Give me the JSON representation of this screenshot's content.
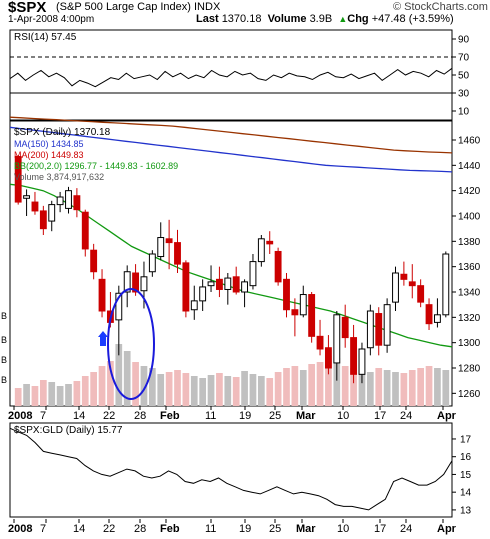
{
  "header": {
    "symbol": "$SPX",
    "description": "(S&P 500 Large Cap Index) INDX",
    "brand": "© StockCharts.com",
    "datetime": "1-Apr-2008 4:00pm",
    "last_label": "Last",
    "last_value": "1370.18",
    "volume_label": "Volume",
    "volume_value": "3.9B",
    "chg_label": "Chg",
    "chg_value": "+47.48 (+3.59%)",
    "chg_icon": "up-triangle-icon"
  },
  "colors": {
    "up": "#000000",
    "down": "#cc0000",
    "ma150": "#2233cc",
    "ma200": "#993300",
    "bb": "#119911",
    "volume_down": "#f0bcbc",
    "volume_up": "#c0c0c0",
    "annotation": "#1a1adb"
  },
  "chart_data": [
    {
      "type": "line",
      "panel": "rsi",
      "legend": "RSI(14) 57.45",
      "series": [
        {
          "name": "RSI(14)",
          "values": [
            46,
            52,
            44,
            50,
            55,
            48,
            52,
            47,
            38,
            44,
            41,
            37,
            42,
            47,
            45,
            52,
            46,
            48,
            50,
            45,
            54,
            48,
            52,
            46,
            50,
            47,
            55,
            50,
            48,
            54,
            50,
            52,
            46,
            44,
            50,
            47,
            52,
            49,
            48,
            45,
            50,
            53,
            48,
            47,
            51,
            46,
            49,
            52,
            44,
            50,
            56,
            50,
            54,
            52,
            48,
            55,
            51,
            57.45
          ]
        }
      ],
      "y_ticks": [
        "90",
        "70",
        "50",
        "30",
        "10"
      ],
      "ylim": [
        0,
        100
      ],
      "reference_lines": [
        70,
        30
      ]
    },
    {
      "type": "candlestick",
      "panel": "price",
      "legend": [
        "$SPX (Daily) 1370.18",
        "MA(150) 1434.85",
        "MA(200) 1449.83",
        "BB(200,2.0) 1296.77 - 1449.83 - 1602.89",
        "Volume 3,874,917,632"
      ],
      "y_ticks": [
        "1460",
        "1440",
        "1420",
        "1400",
        "1380",
        "1360",
        "1340",
        "1320",
        "1300",
        "1280",
        "1260"
      ],
      "ylim": [
        1250,
        1475
      ],
      "x_labels": [
        "2008",
        "7",
        "14",
        "22",
        "28",
        "Feb",
        "11",
        "19",
        "25",
        "Mar",
        "10",
        "17",
        "24",
        "Apr"
      ],
      "candles": [
        [
          1447,
          1448,
          1409,
          1411
        ],
        [
          1414,
          1421,
          1400,
          1416
        ],
        [
          1411,
          1419,
          1401,
          1404
        ],
        [
          1404,
          1408,
          1385,
          1390
        ],
        [
          1396,
          1412,
          1388,
          1409
        ],
        [
          1409,
          1419,
          1403,
          1415
        ],
        [
          1406,
          1423,
          1402,
          1420
        ],
        [
          1416,
          1422,
          1399,
          1405
        ],
        [
          1403,
          1405,
          1368,
          1374
        ],
        [
          1373,
          1378,
          1350,
          1356
        ],
        [
          1350,
          1358,
          1320,
          1325
        ],
        [
          1325,
          1340,
          1312,
          1316
        ],
        [
          1318,
          1345,
          1290,
          1339
        ],
        [
          1340,
          1361,
          1328,
          1356
        ],
        [
          1355,
          1362,
          1337,
          1340
        ],
        [
          1341,
          1364,
          1327,
          1352
        ],
        [
          1356,
          1373,
          1352,
          1370
        ],
        [
          1368,
          1395,
          1365,
          1383
        ],
        [
          1382,
          1397,
          1358,
          1379
        ],
        [
          1379,
          1389,
          1355,
          1362
        ],
        [
          1363,
          1365,
          1320,
          1325
        ],
        [
          1326,
          1345,
          1318,
          1333
        ],
        [
          1333,
          1350,
          1325,
          1344
        ],
        [
          1345,
          1361,
          1340,
          1348
        ],
        [
          1350,
          1360,
          1336,
          1342
        ],
        [
          1342,
          1355,
          1330,
          1351
        ],
        [
          1352,
          1360,
          1338,
          1340
        ],
        [
          1340,
          1350,
          1328,
          1348
        ],
        [
          1345,
          1370,
          1342,
          1364
        ],
        [
          1364,
          1385,
          1360,
          1382
        ],
        [
          1380,
          1388,
          1370,
          1378
        ],
        [
          1372,
          1375,
          1345,
          1348
        ],
        [
          1350,
          1355,
          1320,
          1326
        ],
        [
          1326,
          1335,
          1305,
          1322
        ],
        [
          1322,
          1345,
          1320,
          1338
        ],
        [
          1338,
          1340,
          1300,
          1305
        ],
        [
          1305,
          1318,
          1290,
          1295
        ],
        [
          1296,
          1306,
          1275,
          1280
        ],
        [
          1284,
          1325,
          1270,
          1322
        ],
        [
          1320,
          1330,
          1296,
          1304
        ],
        [
          1304,
          1314,
          1268,
          1275
        ],
        [
          1275,
          1300,
          1268,
          1295
        ],
        [
          1296,
          1330,
          1290,
          1325
        ],
        [
          1323,
          1328,
          1290,
          1298
        ],
        [
          1298,
          1335,
          1292,
          1330
        ],
        [
          1332,
          1360,
          1325,
          1355
        ],
        [
          1354,
          1364,
          1345,
          1350
        ],
        [
          1348,
          1362,
          1335,
          1345
        ],
        [
          1345,
          1350,
          1328,
          1332
        ],
        [
          1330,
          1335,
          1310,
          1315
        ],
        [
          1316,
          1335,
          1312,
          1322
        ],
        [
          1322,
          1372,
          1320,
          1370
        ]
      ],
      "ma150": [
        1470,
        1469,
        1468,
        1467,
        1466,
        1465,
        1464,
        1463,
        1462,
        1461,
        1460,
        1459,
        1458,
        1457,
        1456,
        1455,
        1454,
        1453,
        1452,
        1451,
        1450,
        1449,
        1448,
        1447,
        1446,
        1445,
        1444,
        1443,
        1442,
        1441,
        1440,
        1439.5,
        1439,
        1438.5,
        1438,
        1437.5,
        1437,
        1436.5,
        1436,
        1435.8,
        1435.5,
        1435.2,
        1434.85
      ],
      "ma200": [
        1478,
        1477.5,
        1477,
        1476.5,
        1476,
        1475.5,
        1475,
        1474.5,
        1474,
        1473.5,
        1473,
        1472.5,
        1472,
        1471.5,
        1471,
        1470,
        1469,
        1468,
        1467,
        1466,
        1465,
        1464,
        1463,
        1462,
        1461,
        1460,
        1459,
        1458,
        1457,
        1456,
        1455,
        1454,
        1453,
        1452,
        1451.5,
        1451,
        1450.5,
        1450.2,
        1449.83
      ],
      "bb_lower": [
        1425,
        1424,
        1422,
        1420,
        1416,
        1411,
        1406,
        1400,
        1394,
        1388,
        1382,
        1376,
        1372,
        1368,
        1364,
        1360,
        1356,
        1353,
        1350,
        1347,
        1344,
        1341,
        1339,
        1337,
        1335,
        1333,
        1331,
        1329,
        1327,
        1325,
        1322,
        1319,
        1316,
        1313,
        1310,
        1307,
        1304,
        1302,
        1300,
        1298,
        1296.77
      ],
      "volume": [
        18,
        22,
        20,
        26,
        24,
        20,
        22,
        25,
        30,
        34,
        40,
        45,
        62,
        55,
        44,
        40,
        38,
        32,
        34,
        36,
        33,
        30,
        28,
        31,
        33,
        30,
        29,
        35,
        32,
        30,
        28,
        34,
        38,
        40,
        36,
        42,
        44,
        50,
        48,
        40,
        38,
        36,
        34,
        38,
        36,
        34,
        33,
        36,
        38,
        40,
        38,
        36
      ]
    },
    {
      "type": "line",
      "panel": "ratio",
      "legend": "$SPX:GLD (Daily) 15.77",
      "series": [
        {
          "name": "$SPX:GLD (Daily)",
          "values": [
            17.6,
            17.4,
            17.2,
            16.8,
            16.3,
            16.2,
            16.1,
            16.0,
            15.9,
            15.5,
            15.2,
            15.0,
            14.9,
            15.1,
            15.3,
            15.2,
            14.9,
            14.8,
            14.9,
            15.2,
            15.0,
            14.6,
            14.5,
            14.7,
            14.6,
            14.8,
            14.5,
            14.3,
            14.1,
            14.0,
            13.9,
            14.1,
            14.3,
            14.1,
            13.9,
            14.0,
            13.9,
            13.8,
            13.6,
            13.3,
            13.2,
            13.2,
            13.1,
            13.0,
            13.3,
            13.6,
            14.6,
            14.8,
            14.6,
            14.4,
            14.4,
            14.6,
            15.0,
            15.77
          ]
        }
      ],
      "y_ticks": [
        "17",
        "16",
        "15",
        "14",
        "13"
      ],
      "ylim": [
        12.6,
        17.9
      ],
      "x_labels": [
        "2008",
        "7",
        "14",
        "22",
        "28",
        "Feb",
        "11",
        "19",
        "25",
        "Mar",
        "10",
        "17",
        "24",
        "Apr"
      ]
    }
  ]
}
